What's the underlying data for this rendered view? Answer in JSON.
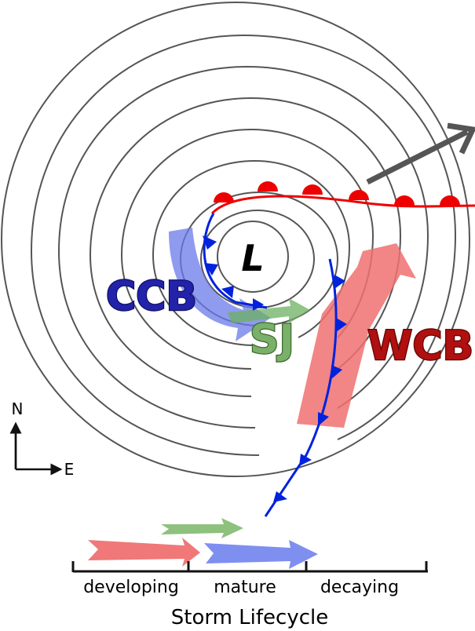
{
  "diagram": {
    "center_label": "L",
    "airstreams": {
      "ccb": "CCB",
      "sj": "SJ",
      "wcb": "WCB"
    },
    "compass": {
      "north": "N",
      "east": "E"
    },
    "lifecycle": {
      "stages": [
        "developing",
        "mature",
        "decaying"
      ],
      "title": "Storm Lifecycle"
    }
  }
}
